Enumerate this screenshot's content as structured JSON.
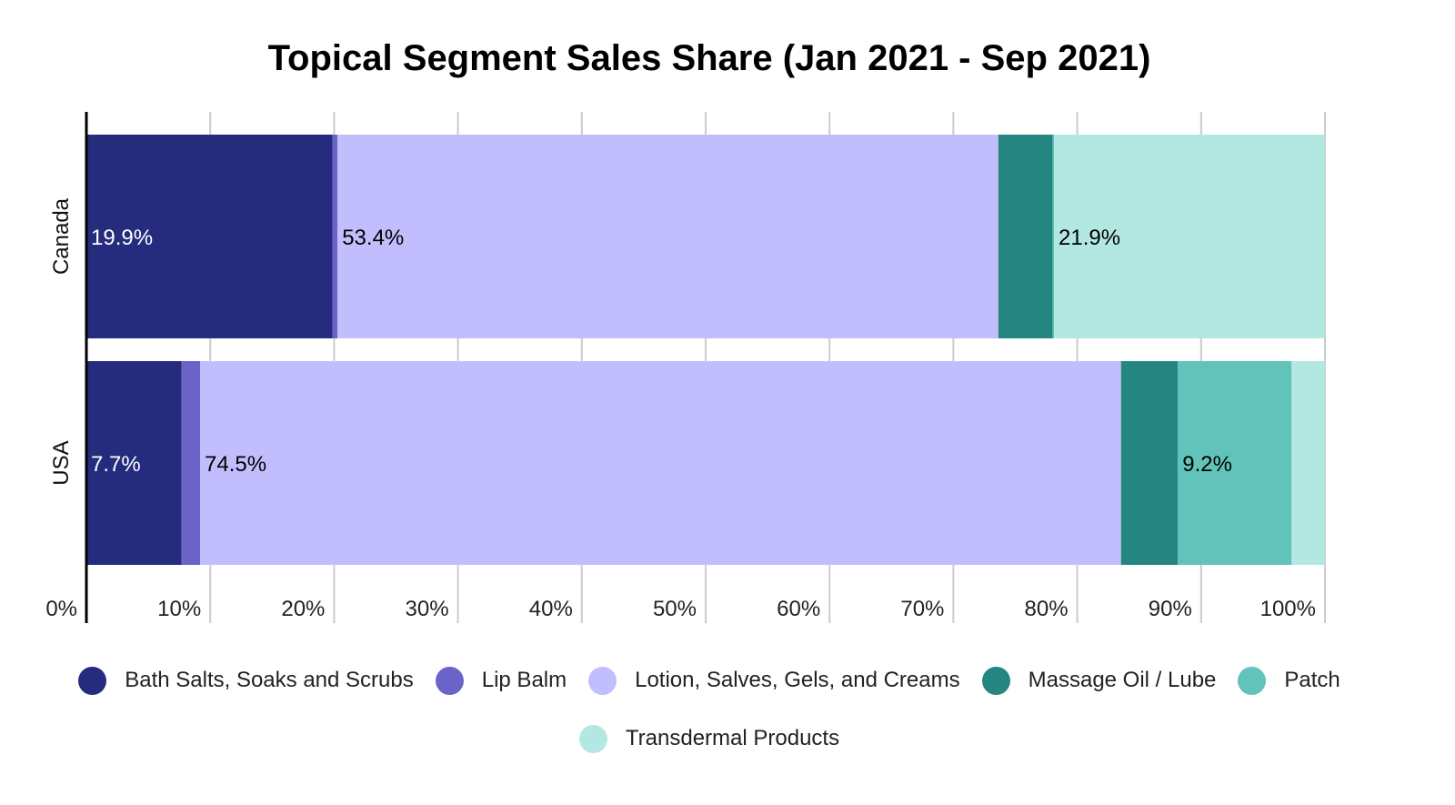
{
  "chart_data": {
    "type": "bar",
    "orientation": "horizontal",
    "stacked": "percent",
    "title": "Topical Segment Sales Share (Jan 2021 - Sep 2021)",
    "xlabel": "",
    "ylabel": "",
    "categories": [
      "Canada",
      "USA"
    ],
    "xlim": [
      0,
      100
    ],
    "x_ticks": [
      "0%",
      "10%",
      "20%",
      "30%",
      "40%",
      "50%",
      "60%",
      "70%",
      "80%",
      "90%",
      "100%"
    ],
    "grid": "vertical",
    "legend_position": "bottom",
    "series": [
      {
        "name": "Bath Salts, Soaks and Scrubs",
        "color": "#252c7e",
        "values": [
          19.9,
          7.7
        ],
        "labels": [
          "19.9%",
          "7.7%"
        ],
        "label_color": "#ffffff"
      },
      {
        "name": "Lip Balm",
        "color": "#6b64c8",
        "values": [
          0.4,
          1.5
        ],
        "labels": [
          "",
          ""
        ],
        "label_color": "#000000"
      },
      {
        "name": "Lotion, Salves, Gels, and Creams",
        "color": "#c2befd",
        "values": [
          53.4,
          74.5
        ],
        "labels": [
          "53.4%",
          "74.5%"
        ],
        "label_color": "#000000"
      },
      {
        "name": "Massage Oil / Lube",
        "color": "#258681",
        "values": [
          4.4,
          4.6
        ],
        "labels": [
          "",
          ""
        ],
        "label_color": "#000000"
      },
      {
        "name": "Patch",
        "color": "#62c3bb",
        "values": [
          0.1,
          9.2
        ],
        "labels": [
          "",
          "9.2%"
        ],
        "label_color": "#000000"
      },
      {
        "name": "Transdermal Products",
        "color": "#b3e8e2",
        "values": [
          21.9,
          2.7
        ],
        "labels": [
          "21.9%",
          ""
        ],
        "label_color": "#000000"
      }
    ]
  }
}
